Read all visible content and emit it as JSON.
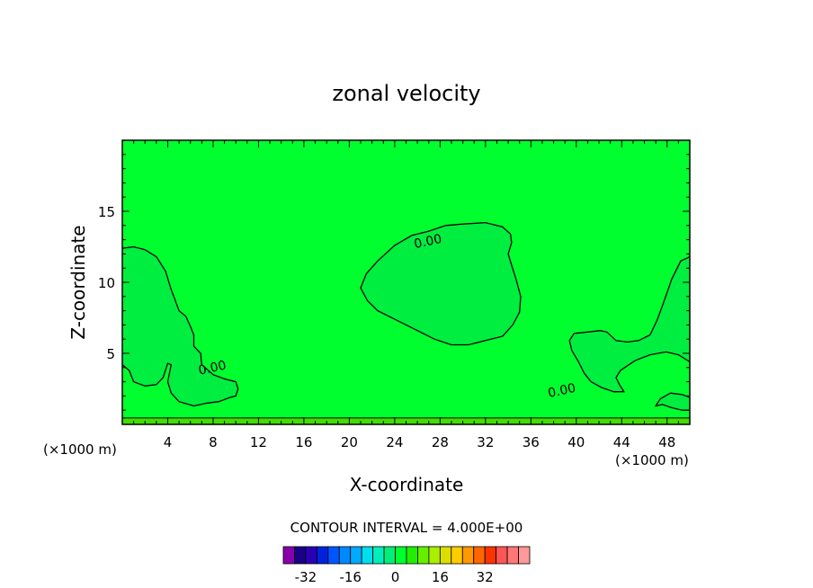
{
  "chart_data": {
    "type": "heatmap",
    "title": "zonal velocity",
    "xlabel": "X-coordinate",
    "ylabel": "Z-coordinate",
    "x_unit_left": "(×1000 m)",
    "x_unit_right": "(×1000 m)",
    "xlim": [
      0,
      50
    ],
    "ylim": [
      0,
      20
    ],
    "x_ticks": [
      4,
      8,
      12,
      16,
      20,
      24,
      28,
      32,
      36,
      40,
      44,
      48
    ],
    "y_ticks": [
      5,
      10,
      15
    ],
    "background_field_color": "#00ff2e",
    "contour_interval_text": "CONTOUR INTERVAL = 4.000E+00",
    "contour_labels": [
      {
        "x": 27.0,
        "y": 12.6,
        "text": "0.00"
      },
      {
        "x": 8.0,
        "y": 3.7,
        "text": "0.00"
      },
      {
        "x": 38.8,
        "y": 2.1,
        "text": "0.00"
      }
    ],
    "zero_contour_regions": [
      {
        "points": [
          [
            0,
            12.4
          ],
          [
            1,
            12.5
          ],
          [
            2,
            12.3
          ],
          [
            3,
            11.8
          ],
          [
            3.8,
            10.8
          ],
          [
            4.3,
            9.5
          ],
          [
            5,
            8
          ],
          [
            5.6,
            7.6
          ],
          [
            6,
            6.9
          ],
          [
            6.3,
            6.3
          ],
          [
            6.3,
            5.5
          ],
          [
            6.9,
            5
          ],
          [
            7,
            4.2
          ],
          [
            8,
            3.5
          ],
          [
            9,
            3.2
          ],
          [
            10,
            3.0
          ],
          [
            10.2,
            2.5
          ],
          [
            10,
            2.0
          ],
          [
            9.5,
            1.9
          ],
          [
            8.5,
            1.6
          ],
          [
            7.5,
            1.5
          ],
          [
            6.3,
            1.3
          ],
          [
            5,
            1.6
          ],
          [
            4.3,
            2.2
          ],
          [
            4.0,
            3.0
          ],
          [
            4.3,
            4.2
          ],
          [
            4.0,
            4.3
          ],
          [
            3.6,
            3.3
          ],
          [
            3.0,
            2.8
          ],
          [
            2.0,
            2.7
          ],
          [
            1.0,
            3.0
          ],
          [
            0.6,
            3.8
          ],
          [
            0,
            4.2
          ]
        ]
      },
      {
        "points": [
          [
            21,
            9.6
          ],
          [
            21.5,
            10.6
          ],
          [
            22.5,
            11.5
          ],
          [
            24,
            12.6
          ],
          [
            25.5,
            13.3
          ],
          [
            27,
            13.6
          ],
          [
            28.5,
            14.0
          ],
          [
            30,
            14.1
          ],
          [
            32,
            14.2
          ],
          [
            33.5,
            13.9
          ],
          [
            34.2,
            13.4
          ],
          [
            34.3,
            12.8
          ],
          [
            34.0,
            12.0
          ],
          [
            34.3,
            11.2
          ],
          [
            34.7,
            10.2
          ],
          [
            35.1,
            9.0
          ],
          [
            35.0,
            7.9
          ],
          [
            34.4,
            7.0
          ],
          [
            33.5,
            6.2
          ],
          [
            32.0,
            5.9
          ],
          [
            30.5,
            5.6
          ],
          [
            29,
            5.6
          ],
          [
            27.5,
            6.0
          ],
          [
            26,
            6.6
          ],
          [
            24,
            7.4
          ],
          [
            22.5,
            8.0
          ],
          [
            21.6,
            8.7
          ]
        ]
      },
      {
        "points": [
          [
            50,
            11.8
          ],
          [
            49.2,
            11.5
          ],
          [
            48.4,
            10.2
          ],
          [
            47.7,
            8.6
          ],
          [
            47.1,
            7.3
          ],
          [
            46.5,
            6.3
          ],
          [
            45.5,
            5.9
          ],
          [
            44.5,
            5.8
          ],
          [
            43.5,
            5.9
          ],
          [
            42.7,
            6.5
          ],
          [
            42.1,
            6.6
          ],
          [
            41,
            6.5
          ],
          [
            39.8,
            6.4
          ],
          [
            39.4,
            5.9
          ],
          [
            39.6,
            5.2
          ],
          [
            40.2,
            4.4
          ],
          [
            40.7,
            3.6
          ],
          [
            41.3,
            3.0
          ],
          [
            42.2,
            2.6
          ],
          [
            43.3,
            2.3
          ],
          [
            44.2,
            2.3
          ],
          [
            43.8,
            2.8
          ],
          [
            43.5,
            3.3
          ],
          [
            43.9,
            3.8
          ],
          [
            45.2,
            4.5
          ],
          [
            46.5,
            4.9
          ],
          [
            47.9,
            5.1
          ],
          [
            49.0,
            4.9
          ],
          [
            50,
            4.4
          ]
        ]
      },
      {
        "points": [
          [
            50,
            1.0
          ],
          [
            49.3,
            1.0
          ],
          [
            48.3,
            1.2
          ],
          [
            47.6,
            1.4
          ],
          [
            47.0,
            1.3
          ],
          [
            47.4,
            1.8
          ],
          [
            48.3,
            2.2
          ],
          [
            49.3,
            2.1
          ],
          [
            50,
            1.9
          ]
        ]
      }
    ],
    "colorbar": {
      "ticks": [
        -32,
        -16,
        0,
        16,
        32
      ],
      "colors": [
        "#8800aa",
        "#1a0088",
        "#2a00b4",
        "#0022dd",
        "#0055ff",
        "#0088ff",
        "#00aaff",
        "#00ddee",
        "#00eebb",
        "#00ee77",
        "#00ff2e",
        "#22ee00",
        "#66ee00",
        "#aaee00",
        "#dddd00",
        "#ffcc00",
        "#ff9900",
        "#ff6600",
        "#ff3300",
        "#ff5555",
        "#ff7777",
        "#ff9999"
      ]
    }
  }
}
